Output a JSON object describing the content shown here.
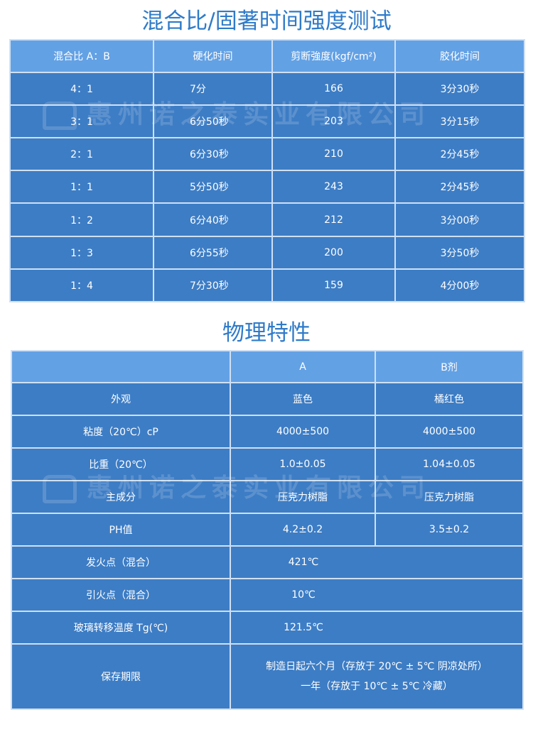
{
  "mix_table": {
    "title": "混合比/固著时间强度测试",
    "headers": [
      "混合比 A：B",
      "硬化时间",
      "剪断強度(kgf/cm²)",
      "胶化时间"
    ],
    "rows": [
      [
        "4：1",
        "7分",
        "166",
        "3分30秒"
      ],
      [
        "3：1",
        "6分50秒",
        "203",
        "3分15秒"
      ],
      [
        "2：1",
        "6分30秒",
        "210",
        "2分45秒"
      ],
      [
        "1：1",
        "5分50秒",
        "243",
        "2分45秒"
      ],
      [
        "1：2",
        "6分40秒",
        "212",
        "3分00秒"
      ],
      [
        "1：3",
        "6分55秒",
        "200",
        "3分50秒"
      ],
      [
        "1：4",
        "7分30秒",
        "159",
        "4分00秒"
      ]
    ]
  },
  "physical_table": {
    "title": "物理特性",
    "headers": [
      "",
      "A",
      "B剂"
    ],
    "rows": [
      [
        "外观",
        "蓝色",
        "橘红色"
      ],
      [
        "粘度（20℃）cP",
        "4000±500",
        "4000±500"
      ],
      [
        "比重（20℃）",
        "1.0±0.05",
        "1.04±0.05"
      ],
      [
        "主成分",
        "压克力树脂",
        "压克力树脂"
      ],
      [
        "PH值",
        "4.2±0.2",
        "3.5±0.2"
      ]
    ],
    "span_rows": [
      [
        "发火点（混合）",
        "421℃"
      ],
      [
        "引火点（混合）",
        "10℃"
      ],
      [
        "玻璃转移温度 Tg(℃)",
        "121.5℃"
      ]
    ],
    "storage": {
      "label": "保存期限",
      "line1": "制造日起六个月（存放于 20℃ ± 5℃ 阴凉处所）",
      "line2": "一年（存放于 10℃ ± 5℃ 冷藏）"
    }
  },
  "watermark": "惠州诺之泰实业有限公司",
  "colors": {
    "title": "#2f7bc9",
    "header_bg": "#63a1e5",
    "body_bg": "#3d7dc5",
    "border": "#cfe0f4"
  }
}
